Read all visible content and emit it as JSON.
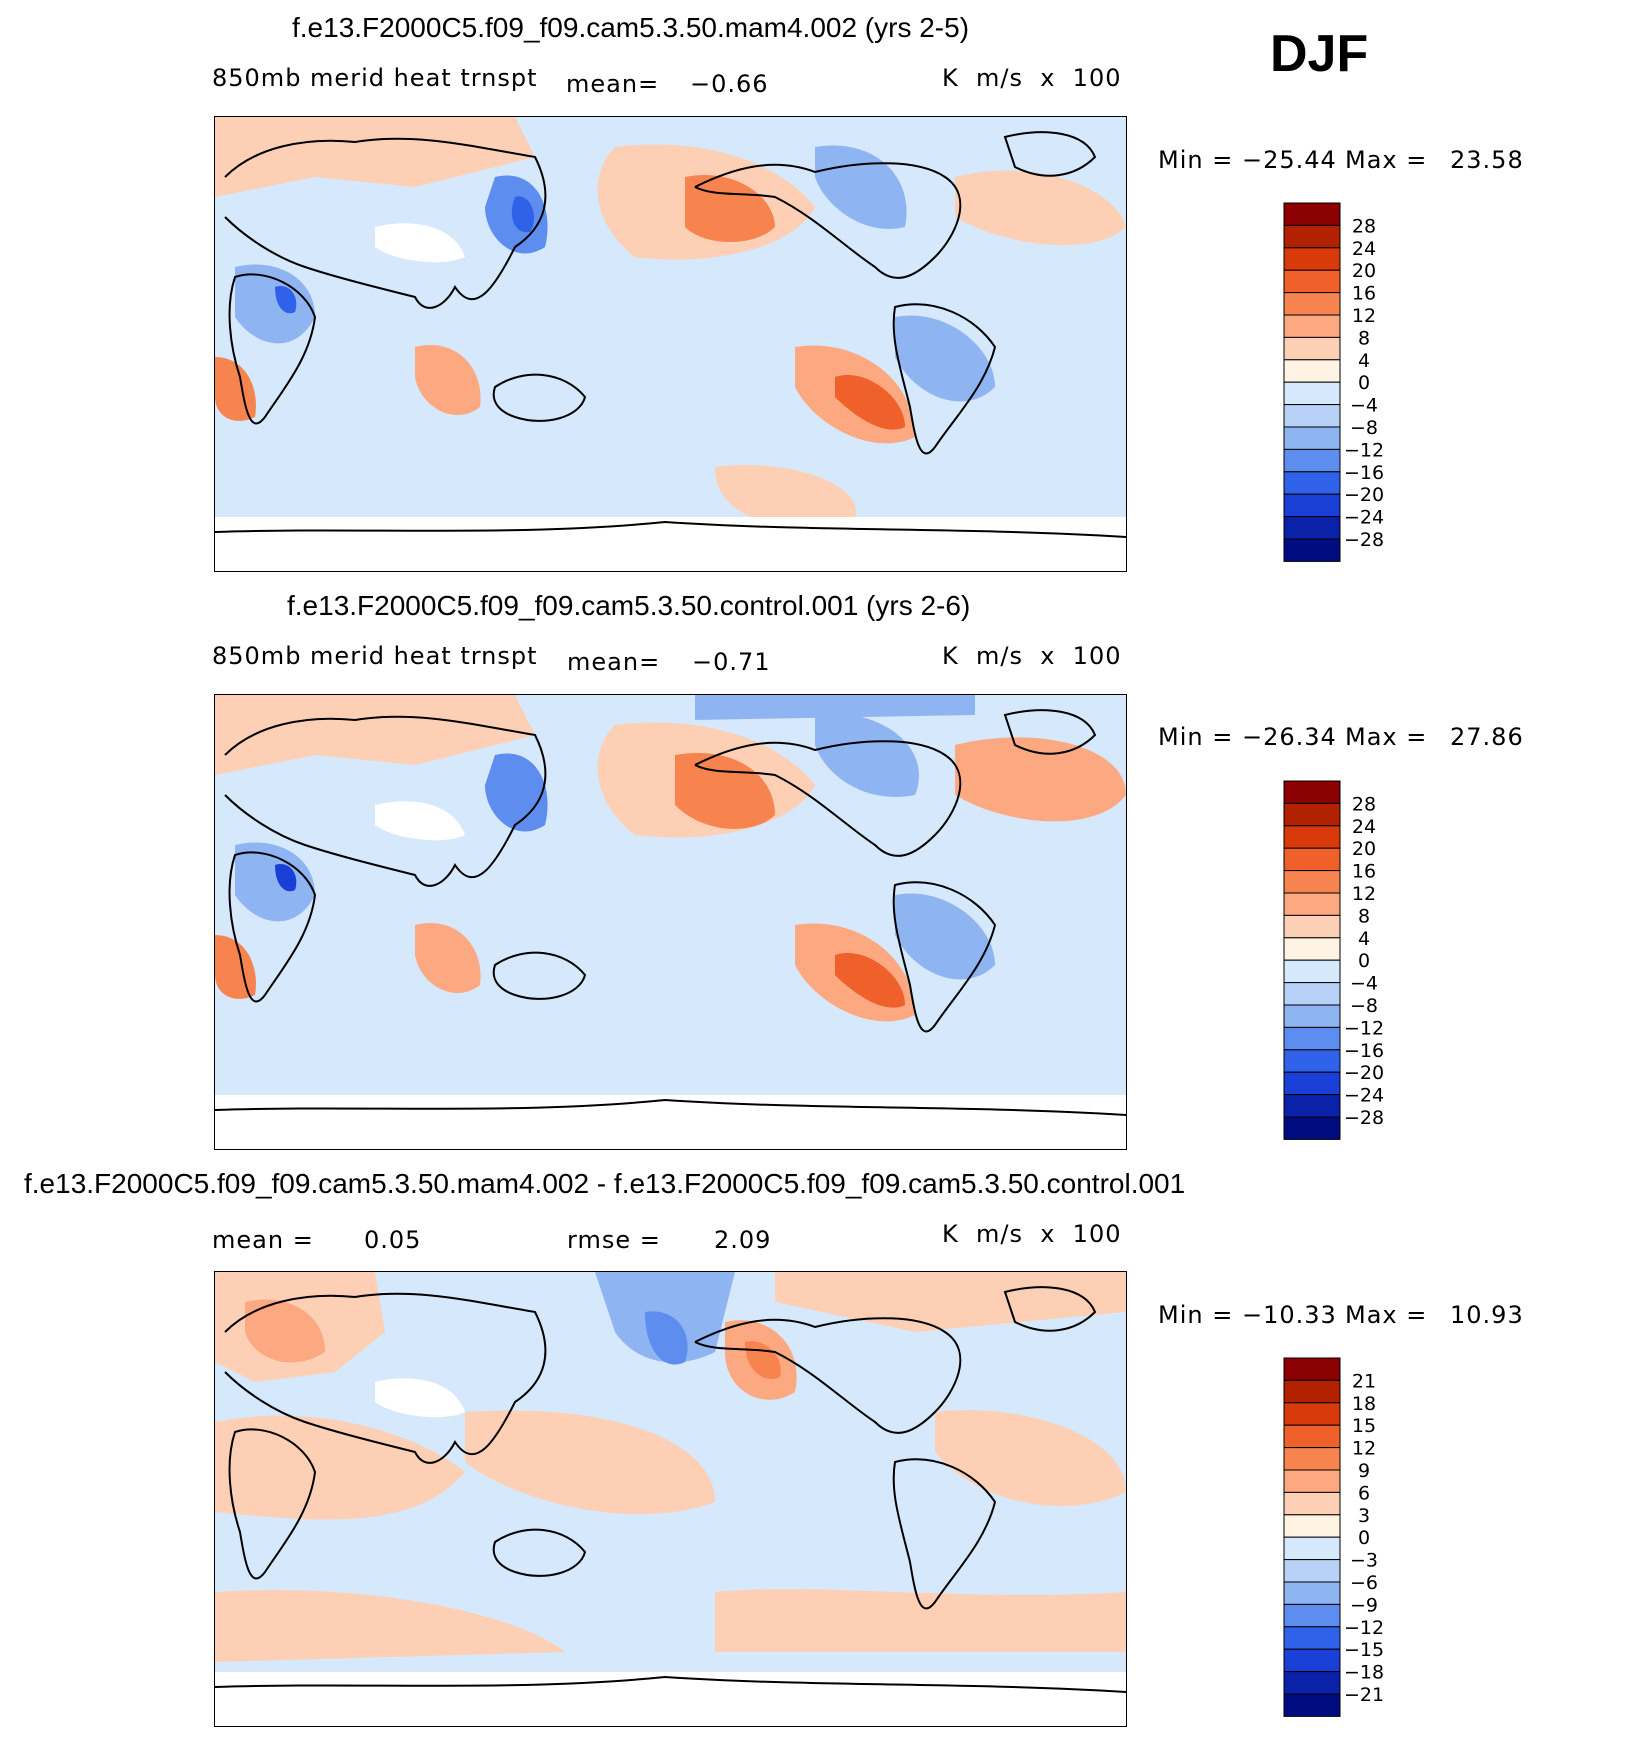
{
  "season": "DJF",
  "chart_data": [
    {
      "type": "heatmap",
      "title": "f.e13.F2000C5.f09_f09.cam5.3.50.mam4.002 (yrs 2-5)",
      "variable": "850mb merid heat trnspt",
      "mean_label": "mean=",
      "mean_value": "−0.66",
      "units": "K  m/s  x  100",
      "min_label": "Min  =",
      "min_value": "−25.44",
      "max_label": "Max  =",
      "max_value": "23.58",
      "min": -25.44,
      "max": 23.58,
      "levels": [
        28,
        24,
        20,
        16,
        12,
        8,
        4,
        0,
        -4,
        -8,
        -12,
        -16,
        -20,
        -24,
        -28
      ],
      "level_labels": [
        "28",
        "24",
        "20",
        "16",
        "12",
        "8",
        "4",
        "0",
        "−4",
        "−8",
        "−12",
        "−16",
        "−20",
        "−24",
        "−28"
      ],
      "colors": [
        "#8b0000",
        "#b22200",
        "#d83a0c",
        "#f0602a",
        "#f7844f",
        "#fca982",
        "#fdd0b5",
        "#fff3e4",
        "#d6e8fb",
        "#b7d1f7",
        "#8fb4f2",
        "#5e8df0",
        "#2f62e8",
        "#1a3fd6",
        "#0a22aa",
        "#000c80"
      ]
    },
    {
      "type": "heatmap",
      "title": "f.e13.F2000C5.f09_f09.cam5.3.50.control.001 (yrs 2-6)",
      "variable": "850mb merid heat trnspt",
      "mean_label": "mean=",
      "mean_value": "−0.71",
      "units": "K  m/s  x  100",
      "min_label": "Min  =",
      "min_value": "−26.34",
      "max_label": "Max  =",
      "max_value": "27.86",
      "min": -26.34,
      "max": 27.86,
      "levels": [
        28,
        24,
        20,
        16,
        12,
        8,
        4,
        0,
        -4,
        -8,
        -12,
        -16,
        -20,
        -24,
        -28
      ],
      "level_labels": [
        "28",
        "24",
        "20",
        "16",
        "12",
        "8",
        "4",
        "0",
        "−4",
        "−8",
        "−12",
        "−16",
        "−20",
        "−24",
        "−28"
      ],
      "colors": [
        "#8b0000",
        "#b22200",
        "#d83a0c",
        "#f0602a",
        "#f7844f",
        "#fca982",
        "#fdd0b5",
        "#fff3e4",
        "#d6e8fb",
        "#b7d1f7",
        "#8fb4f2",
        "#5e8df0",
        "#2f62e8",
        "#1a3fd6",
        "#0a22aa",
        "#000c80"
      ]
    },
    {
      "type": "heatmap",
      "title": "f.e13.F2000C5.f09_f09.cam5.3.50.mam4.002 - f.e13.F2000C5.f09_f09.cam5.3.50.control.001",
      "mean_label": "mean =",
      "mean_value": "0.05",
      "rmse_label": "rmse =",
      "rmse_value": "2.09",
      "units": "K  m/s  x  100",
      "min_label": "Min  =",
      "min_value": "−10.33",
      "max_label": "Max  =",
      "max_value": "10.93",
      "min": -10.33,
      "max": 10.93,
      "levels": [
        21,
        18,
        15,
        12,
        9,
        6,
        3,
        0,
        -3,
        -6,
        -9,
        -12,
        -15,
        -18,
        -21
      ],
      "level_labels": [
        "21",
        "18",
        "15",
        "12",
        "9",
        "6",
        "3",
        "0",
        "−3",
        "−6",
        "−9",
        "−12",
        "−15",
        "−18",
        "−21"
      ],
      "colors": [
        "#8b0000",
        "#b22200",
        "#d83a0c",
        "#f0602a",
        "#f7844f",
        "#fca982",
        "#fdd0b5",
        "#fff3e4",
        "#d6e8fb",
        "#b7d1f7",
        "#8fb4f2",
        "#5e8df0",
        "#2f62e8",
        "#1a3fd6",
        "#0a22aa",
        "#000c80"
      ]
    }
  ]
}
